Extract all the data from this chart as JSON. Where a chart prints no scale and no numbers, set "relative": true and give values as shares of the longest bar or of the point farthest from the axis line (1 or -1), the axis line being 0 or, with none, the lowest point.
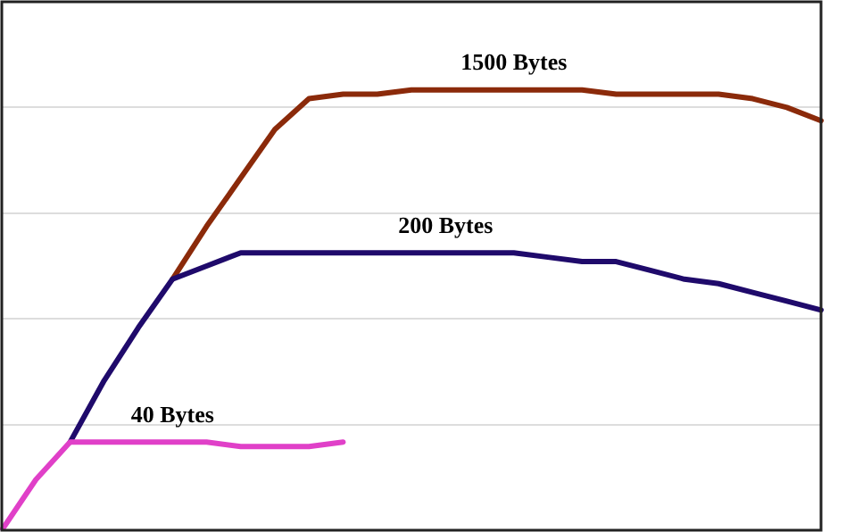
{
  "chart_data": {
    "type": "line",
    "relative": true,
    "grid": "y",
    "legend": false,
    "tick_labels": false,
    "categories": [
      null,
      null,
      null,
      null,
      null,
      null,
      null,
      null,
      null,
      null,
      null,
      null,
      null,
      null,
      null,
      null,
      null,
      null,
      null,
      null,
      null,
      null,
      null,
      null,
      null
    ],
    "series": [
      {
        "name": "1500 Bytes",
        "color": "#8b2a0a",
        "values": [
          null,
          null,
          null,
          null,
          null,
          0.57,
          0.69,
          0.8,
          0.91,
          0.98,
          0.99,
          0.99,
          1,
          1,
          1,
          1,
          1,
          1,
          0.99,
          0.99,
          0.99,
          0.99,
          0.98,
          0.96,
          0.93
        ]
      },
      {
        "name": "200 Bytes",
        "color": "#1f0a6b",
        "values": [
          null,
          null,
          0.2,
          0.34,
          0.46,
          0.57,
          0.6,
          0.63,
          0.63,
          0.63,
          0.63,
          0.63,
          0.63,
          0.63,
          0.63,
          0.63,
          0.62,
          0.61,
          0.61,
          0.59,
          0.57,
          0.56,
          0.54,
          0.52,
          0.5
        ]
      },
      {
        "name": "40 Bytes",
        "color": "#e040c8",
        "values": [
          0,
          0.115,
          0.2,
          0.2,
          0.2,
          0.2,
          0.2,
          0.19,
          0.19,
          0.19,
          0.2,
          null,
          null,
          null,
          null,
          null,
          null,
          null,
          null,
          null,
          null,
          null,
          null,
          null,
          null
        ]
      }
    ]
  }
}
